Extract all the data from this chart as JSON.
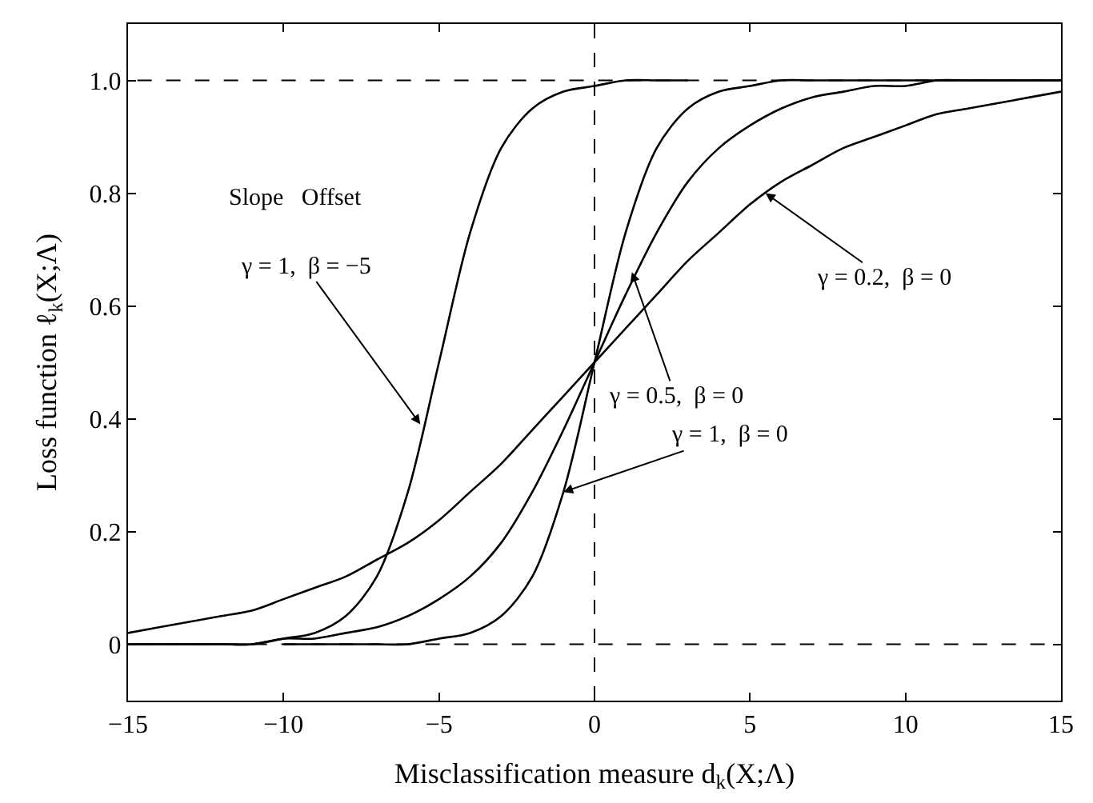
{
  "chart_data": {
    "type": "line",
    "xlabel": "Misclassification measure d$_{k}$(X;Λ)",
    "ylabel": "Loss function ℓ$_{k}$(X;Λ)",
    "x": [
      -15,
      -14,
      -13,
      -12,
      -11,
      -10,
      -9,
      -8,
      -7,
      -6,
      -5,
      -4,
      -3,
      -2,
      -1,
      0,
      1,
      2,
      3,
      4,
      5,
      6,
      7,
      8,
      9,
      10,
      11,
      12,
      13,
      14,
      15
    ],
    "series": [
      {
        "color": "#000000",
        "x": [
          -15,
          -14,
          -13,
          -12,
          -11,
          -10,
          -9,
          -8,
          -7,
          -6,
          -5,
          -4,
          -3,
          -2,
          -1,
          0,
          1,
          2,
          3
        ],
        "values": [
          0,
          0,
          0,
          0,
          0,
          0.01,
          0.02,
          0.05,
          0.12,
          0.27,
          0.5,
          0.73,
          0.88,
          0.95,
          0.98,
          0.99,
          1,
          1,
          1
        ]
      },
      {
        "color": "#000000",
        "x": [
          -10,
          -9,
          -8,
          -7,
          -6,
          -5,
          -4,
          -3,
          -2,
          -1,
          0,
          1,
          2,
          3,
          4,
          5,
          6,
          7,
          8,
          9,
          10,
          11,
          12,
          13,
          14,
          15
        ],
        "values": [
          0,
          0,
          0,
          0,
          0,
          0.01,
          0.02,
          0.05,
          0.12,
          0.27,
          0.5,
          0.73,
          0.88,
          0.95,
          0.98,
          0.99,
          1,
          1,
          1,
          1,
          1,
          1,
          1,
          1,
          1,
          1
        ]
      },
      {
        "color": "#000000",
        "values": [
          0,
          0,
          0,
          0,
          0,
          0.01,
          0.01,
          0.02,
          0.03,
          0.05,
          0.08,
          0.12,
          0.18,
          0.27,
          0.38,
          0.5,
          0.62,
          0.73,
          0.82,
          0.88,
          0.92,
          0.95,
          0.97,
          0.98,
          0.99,
          0.99,
          1,
          1,
          1,
          1,
          1
        ]
      },
      {
        "color": "#000000",
        "values": [
          0.02,
          0.03,
          0.04,
          0.05,
          0.06,
          0.08,
          0.1,
          0.12,
          0.15,
          0.18,
          0.22,
          0.27,
          0.32,
          0.38,
          0.44,
          0.5,
          0.56,
          0.62,
          0.68,
          0.73,
          0.78,
          0.82,
          0.85,
          0.88,
          0.9,
          0.92,
          0.94,
          0.95,
          0.96,
          0.97,
          0.98
        ]
      }
    ],
    "xlim": [
      -15,
      15
    ],
    "xticks": [
      -15,
      -10,
      -5,
      0,
      5,
      10,
      15
    ],
    "ylim": [
      -0.1,
      1.1
    ],
    "yticks": [
      0,
      0.2,
      0.4,
      0.6,
      0.8,
      {
        "value": 1,
        "label": "1.0"
      }
    ],
    "ref_lines": [
      {
        "axis": "y",
        "value": 0,
        "line_style": "dashed"
      },
      {
        "axis": "y",
        "value": 1,
        "line_style": "dashed"
      },
      {
        "axis": "x",
        "value": 0,
        "line_style": "dashed"
      }
    ],
    "annotations": [
      "Slope   Offset",
      {
        "text": "γ = 1,  β = −5",
        "x": -5.6,
        "y": 0.39
      },
      {
        "text": "γ = 0.5,  β = 0",
        "x": 1.2,
        "y": 0.66
      },
      {
        "text": "γ = 0.2,  β = 0",
        "x": 5.5,
        "y": 0.8
      },
      {
        "text": "γ = 1,  β = 0",
        "x": -1,
        "y": 0.27
      }
    ],
    "marker": "none",
    "line_style": "solid"
  }
}
